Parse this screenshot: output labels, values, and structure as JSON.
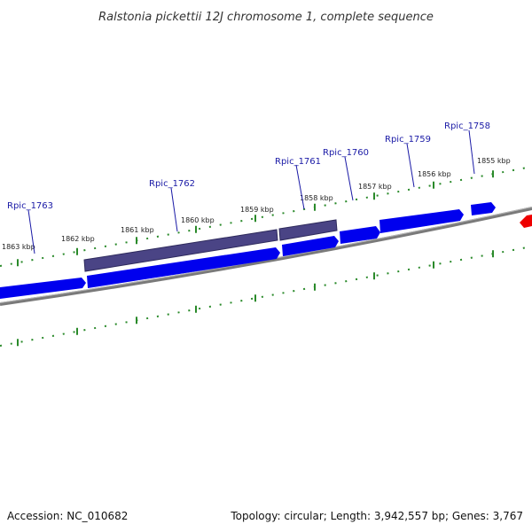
{
  "title": "Ralstonia pickettii 12J chromosome 1, complete sequence",
  "footer": {
    "accession": "Accession: NC_010682",
    "summary": "Topology: circular; Length: 3,942,557 bp; Genes: 3,767"
  },
  "colors": {
    "gene_forward": "#0000ee",
    "gene_highlight": "#4a4485",
    "gene_other": "#ee0000",
    "backbone": "#888888",
    "ticks": "#2a8a2a",
    "gene_label": "#1a1aa6"
  },
  "scale_ticks": [
    {
      "label": "1855 kbp",
      "kbp": 1855
    },
    {
      "label": "1856 kbp",
      "kbp": 1856
    },
    {
      "label": "1857 kbp",
      "kbp": 1857
    },
    {
      "label": "1858 kbp",
      "kbp": 1858
    },
    {
      "label": "1859 kbp",
      "kbp": 1859
    },
    {
      "label": "1860 kbp",
      "kbp": 1860
    },
    {
      "label": "1861 kbp",
      "kbp": 1861
    },
    {
      "label": "1862 kbp",
      "kbp": 1862
    },
    {
      "label": "1863 kbp",
      "kbp": 1863
    }
  ],
  "gene_labels": [
    "Rpic_1758",
    "Rpic_1759",
    "Rpic_1760",
    "Rpic_1761",
    "Rpic_1762",
    "Rpic_1763"
  ]
}
